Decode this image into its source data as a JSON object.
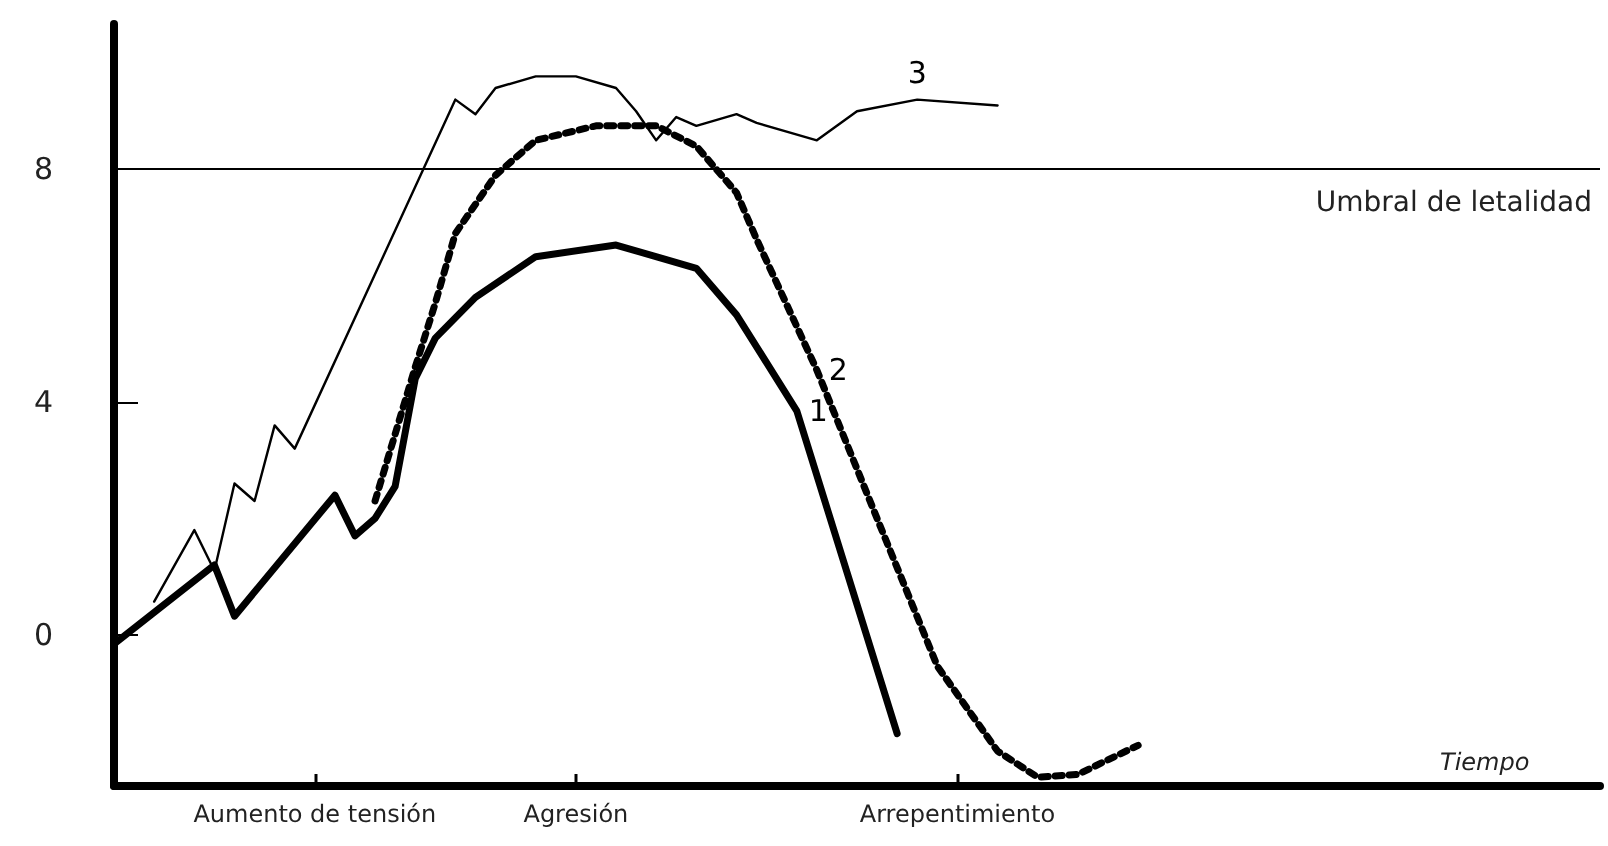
{
  "chart_data": {
    "type": "line",
    "xlabel": "Tiempo",
    "categories": [
      null,
      null,
      null,
      null,
      null,
      null,
      null,
      null,
      null,
      null,
      "Aumento de tensión",
      null,
      null,
      null,
      null,
      null,
      null,
      null,
      null,
      null,
      null,
      null,
      null,
      "Agresión",
      null,
      null,
      null,
      null,
      null,
      null,
      null,
      null,
      null,
      null,
      null,
      null,
      null,
      null,
      null,
      null,
      null,
      null,
      "Arrepentimiento",
      null,
      null,
      null,
      null,
      null,
      null,
      null,
      null,
      null,
      null,
      null,
      null,
      null,
      null,
      null,
      null,
      null,
      null,
      null,
      null,
      null,
      null,
      null,
      null,
      null,
      null,
      null,
      null,
      null,
      null,
      null,
      null
    ],
    "ylim": [
      -2.6,
      10.5
    ],
    "yticks": [
      0,
      4,
      8
    ],
    "grid": false,
    "legend": false,
    "marker": "none",
    "ref_lines": [
      {
        "axis": "y",
        "value": 8,
        "label": "Umbral de letalidad",
        "color": "#000000",
        "line_style": "solid"
      }
    ],
    "series": [
      {
        "name": "1",
        "color": "#000000",
        "line_style": "solid",
        "values": [
          -0.16,
          null,
          null,
          null,
          null,
          1.2,
          0.32,
          null,
          null,
          null,
          null,
          2.4,
          1.7,
          2.0,
          2.55,
          4.4,
          5.1,
          null,
          5.8,
          null,
          null,
          6.5,
          null,
          null,
          null,
          6.7,
          null,
          null,
          null,
          6.3,
          null,
          5.5,
          null,
          null,
          3.85,
          null,
          null,
          null,
          null,
          -1.7,
          null,
          null,
          null,
          null,
          null,
          null,
          null,
          null,
          null,
          null,
          null,
          null,
          null,
          null,
          null,
          null,
          null,
          null,
          null,
          null,
          null,
          null,
          null,
          null,
          null,
          null,
          null,
          null,
          null,
          null,
          null,
          null,
          null,
          null,
          null
        ]
      },
      {
        "name": "2",
        "color": "#000000",
        "line_style": "dotted",
        "values": [
          null,
          null,
          null,
          null,
          null,
          null,
          null,
          null,
          null,
          null,
          null,
          null,
          null,
          2.3,
          null,
          4.6,
          5.7,
          6.9,
          null,
          7.9,
          null,
          8.5,
          null,
          null,
          8.75,
          null,
          null,
          8.75,
          null,
          8.4,
          null,
          7.6,
          6.8,
          null,
          null,
          4.55,
          null,
          null,
          2.0,
          null,
          null,
          -0.54,
          null,
          null,
          -2.0,
          null,
          -2.45,
          null,
          -2.4,
          null,
          null,
          -1.9,
          null,
          null,
          null,
          null,
          null,
          null,
          null,
          null,
          null,
          null,
          null,
          null,
          null,
          null,
          null,
          null,
          null,
          null,
          null,
          null,
          null,
          null,
          null
        ]
      },
      {
        "name": "3",
        "color": "#000000",
        "line_style": "solid",
        "values": [
          null,
          null,
          0.57,
          null,
          1.8,
          1.1,
          2.6,
          2.3,
          3.6,
          3.2,
          null,
          null,
          null,
          null,
          null,
          null,
          null,
          9.2,
          8.95,
          9.4,
          null,
          9.6,
          null,
          9.6,
          null,
          9.4,
          9.0,
          8.5,
          8.9,
          8.75,
          null,
          8.95,
          8.8,
          null,
          null,
          8.5,
          null,
          9.0,
          null,
          null,
          9.2,
          null,
          null,
          null,
          9.1,
          null,
          null,
          null,
          null,
          null,
          null,
          null,
          null,
          null,
          null,
          null,
          null,
          null,
          null,
          null,
          null,
          null,
          null,
          null,
          null,
          null,
          null,
          null,
          null,
          null,
          null,
          null,
          null,
          null,
          null
        ]
      }
    ]
  }
}
